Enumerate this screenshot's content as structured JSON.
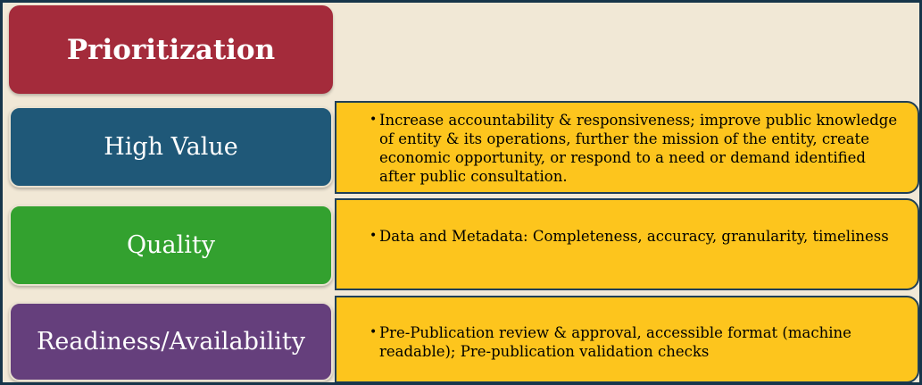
{
  "title": "Prioritization",
  "rows": [
    {
      "label": "High Value",
      "description": "Increase accountability & responsiveness; improve public knowledge of entity & its operations, further  the mission of the entity, create economic opportunity, or respond to a need or demand identified after public consultation."
    },
    {
      "label": "Quality",
      "description": "Data and Metadata:  Completeness, accuracy, granularity, timeliness"
    },
    {
      "label": "Readiness/Availability",
      "description": "Pre-Publication review & approval, accessible format (machine readable); Pre-publication validation checks"
    }
  ],
  "colors": {
    "title": "#a42b3b",
    "high_value": "#1f5878",
    "quality": "#33a12f",
    "readiness": "#653f7c",
    "description_fill": "#fdc51d",
    "background": "#f1e8d6",
    "frame_border": "#17354a"
  },
  "icons": {
    "bullet": "bullet-dot-icon"
  }
}
